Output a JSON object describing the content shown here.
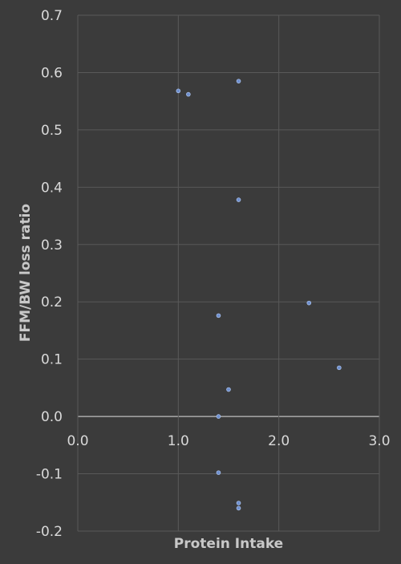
{
  "chart_data": {
    "type": "scatter",
    "title": "",
    "xlabel": "Protein Intake",
    "ylabel": "FFM/BW loss ratio",
    "xlim": [
      0.0,
      3.0
    ],
    "ylim": [
      -0.2,
      0.7
    ],
    "xticks": [
      "0.0",
      "1.0",
      "2.0",
      "3.0"
    ],
    "yticks": [
      "-0.2",
      "-0.1",
      "0.0",
      "0.1",
      "0.2",
      "0.3",
      "0.4",
      "0.5",
      "0.6",
      "0.7"
    ],
    "grid": true,
    "legend": "none",
    "point_color": "#6e8fce",
    "points": [
      {
        "x": 1.0,
        "y": 0.568
      },
      {
        "x": 1.1,
        "y": 0.562
      },
      {
        "x": 1.6,
        "y": 0.585
      },
      {
        "x": 1.6,
        "y": 0.378
      },
      {
        "x": 1.4,
        "y": 0.176
      },
      {
        "x": 2.3,
        "y": 0.198
      },
      {
        "x": 2.6,
        "y": 0.085
      },
      {
        "x": 1.5,
        "y": 0.047
      },
      {
        "x": 1.4,
        "y": 0.0
      },
      {
        "x": 1.4,
        "y": -0.098
      },
      {
        "x": 1.6,
        "y": -0.151
      },
      {
        "x": 1.6,
        "y": -0.16
      }
    ]
  }
}
